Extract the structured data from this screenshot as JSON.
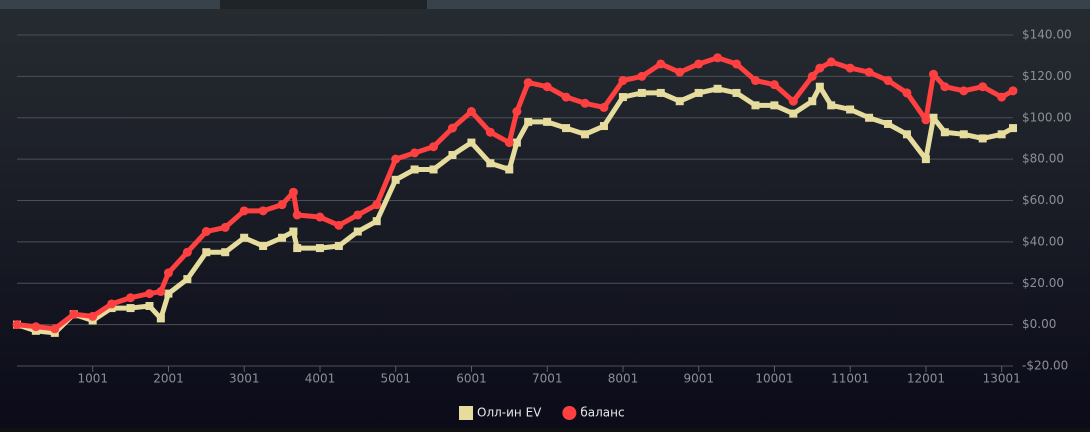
{
  "chart_data": {
    "type": "scatter",
    "legend": "bottom",
    "grid": true,
    "xlim": [
      1,
      13150
    ],
    "xticks": [
      1001,
      2001,
      3001,
      4001,
      5001,
      6001,
      7001,
      8001,
      9001,
      10001,
      11001,
      12001,
      13001
    ],
    "ylim": [
      -20,
      140
    ],
    "yticks": [
      {
        "value": -20,
        "label": "-$20.00"
      },
      {
        "value": 0,
        "label": "$0.00"
      },
      {
        "value": 20,
        "label": "$20.00"
      },
      {
        "value": 40,
        "label": "$40.00"
      },
      {
        "value": 60,
        "label": "$60.00"
      },
      {
        "value": 80,
        "label": "$80.00"
      },
      {
        "value": 100,
        "label": "$100.00"
      },
      {
        "value": 120,
        "label": "$120.00"
      },
      {
        "value": 140,
        "label": "$140.00"
      }
    ],
    "x": [
      1,
      250,
      500,
      750,
      1000,
      1250,
      1500,
      1750,
      1900,
      2000,
      2250,
      2500,
      2750,
      3000,
      3250,
      3500,
      3650,
      3700,
      4000,
      4250,
      4500,
      4750,
      5000,
      5250,
      5500,
      5750,
      6000,
      6250,
      6500,
      6600,
      6750,
      7000,
      7250,
      7500,
      7750,
      8000,
      8250,
      8500,
      8750,
      9000,
      9250,
      9500,
      9750,
      10000,
      10250,
      10500,
      10600,
      10750,
      11000,
      11250,
      11500,
      11750,
      12000,
      12100,
      12250,
      12500,
      12750,
      13000,
      13150
    ],
    "series": [
      {
        "name": "Олл-ин EV",
        "color": "#e6dc9e",
        "marker": "square",
        "values": [
          0,
          -3,
          -4,
          5,
          2,
          8,
          8,
          9,
          3,
          15,
          22,
          35,
          35,
          42,
          38,
          42,
          45,
          37,
          37,
          38,
          45,
          50,
          70,
          75,
          75,
          82,
          88,
          78,
          75,
          88,
          98,
          98,
          95,
          92,
          96,
          110,
          112,
          112,
          108,
          112,
          114,
          112,
          106,
          106,
          102,
          108,
          115,
          106,
          104,
          100,
          97,
          92,
          80,
          100,
          93,
          92,
          90,
          92,
          95
        ]
      },
      {
        "name": "баланс",
        "color": "#ff4040",
        "marker": "circle",
        "values": [
          0,
          -1,
          -2,
          5,
          4,
          10,
          13,
          15,
          16,
          25,
          35,
          45,
          47,
          55,
          55,
          58,
          64,
          53,
          52,
          48,
          53,
          58,
          80,
          83,
          86,
          95,
          103,
          93,
          88,
          103,
          117,
          115,
          110,
          107,
          105,
          118,
          120,
          126,
          122,
          126,
          129,
          126,
          118,
          116,
          108,
          120,
          124,
          127,
          124,
          122,
          118,
          112,
          99,
          121,
          115,
          113,
          115,
          110,
          113
        ]
      }
    ]
  }
}
